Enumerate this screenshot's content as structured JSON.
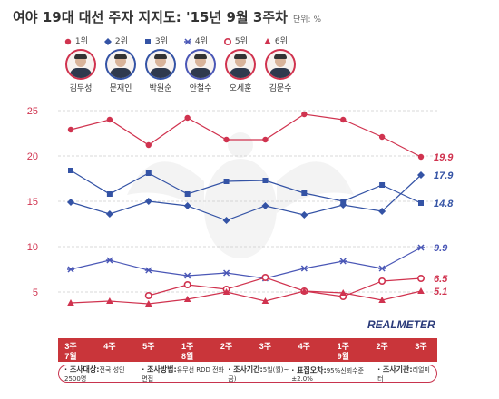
{
  "title": "여야 19대 대선 주자 지지도: '15년 9월 3주차",
  "unit": "단위: %",
  "watermark": "REALMETER",
  "colors": {
    "red": "#d0334f",
    "blue": "#3453a5",
    "purple": "#4a57b6",
    "band": "#c9353a",
    "grid": "#cccccc"
  },
  "legend": [
    {
      "label": "1위",
      "marker": "filled-circle",
      "color": "#d0334f"
    },
    {
      "label": "2위",
      "marker": "diamond",
      "color": "#3453a5"
    },
    {
      "label": "3위",
      "marker": "square",
      "color": "#3453a5"
    },
    {
      "label": "4위",
      "marker": "asterisk",
      "color": "#4a57b6"
    },
    {
      "label": "5위",
      "marker": "open-circle",
      "color": "#d0334f"
    },
    {
      "label": "6위",
      "marker": "triangle",
      "color": "#d0334f"
    }
  ],
  "candidates": [
    {
      "name": "김무성",
      "ring": "#d0334f"
    },
    {
      "name": "문재인",
      "ring": "#3453a5"
    },
    {
      "name": "박원순",
      "ring": "#3453a5"
    },
    {
      "name": "안철수",
      "ring": "#4a57b6"
    },
    {
      "name": "오세훈",
      "ring": "#d0334f"
    },
    {
      "name": "김문수",
      "ring": "#d0334f"
    }
  ],
  "footer": [
    {
      "key": "조사대상",
      "value": "전국 성인 2500명"
    },
    {
      "key": "조사방법",
      "value": "유무선 RDD 전화면접"
    },
    {
      "key": "조사기간",
      "value": "5일(월)~금)"
    },
    {
      "key": "표집오차",
      "value": "95%신뢰수준±2.0%"
    },
    {
      "key": "조사기관",
      "value": "리얼미터"
    }
  ],
  "chart_data": {
    "type": "line",
    "categories": [
      "3주\n7월",
      "4주",
      "5주",
      "1주\n8월",
      "2주",
      "3주",
      "4주",
      "1주\n9월",
      "2주",
      "3주"
    ],
    "ylim": [
      2,
      26
    ],
    "yticks": [
      5,
      10,
      15,
      20,
      25
    ],
    "grid": true,
    "series": [
      {
        "name": "1위",
        "marker": "filled-circle",
        "color": "#d0334f",
        "values": [
          22.9,
          24.0,
          21.2,
          24.2,
          21.8,
          21.8,
          24.6,
          24.0,
          22.1,
          19.9
        ],
        "end_label": "19.9"
      },
      {
        "name": "2위",
        "marker": "diamond",
        "color": "#3453a5",
        "values": [
          14.9,
          13.6,
          15.0,
          14.5,
          12.9,
          14.5,
          13.5,
          14.6,
          13.9,
          17.9
        ],
        "end_label": "17.9"
      },
      {
        "name": "3위",
        "marker": "square",
        "color": "#3453a5",
        "values": [
          18.4,
          15.8,
          18.1,
          15.8,
          17.2,
          17.3,
          15.9,
          15.0,
          16.8,
          14.8
        ],
        "end_label": "14.8"
      },
      {
        "name": "4위",
        "marker": "asterisk",
        "color": "#4a57b6",
        "values": [
          7.5,
          8.5,
          7.4,
          6.8,
          7.1,
          6.5,
          7.6,
          8.4,
          7.6,
          9.9
        ],
        "end_label": "9.9"
      },
      {
        "name": "5위",
        "marker": "open-circle",
        "color": "#d0334f",
        "values": [
          null,
          null,
          4.6,
          5.8,
          5.3,
          6.6,
          5.1,
          4.5,
          6.2,
          6.5
        ],
        "end_label": "6.5"
      },
      {
        "name": "6위",
        "marker": "triangle",
        "color": "#d0334f",
        "values": [
          3.8,
          4.0,
          3.7,
          4.2,
          5.0,
          4.0,
          5.1,
          4.9,
          4.1,
          5.1
        ],
        "end_label": "5.1"
      }
    ]
  }
}
